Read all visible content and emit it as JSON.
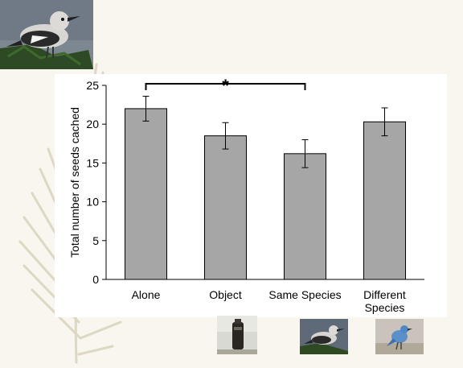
{
  "chart_data": {
    "type": "bar",
    "categories": [
      [
        "Alone"
      ],
      [
        "Object"
      ],
      [
        "Same Species"
      ],
      [
        "Different",
        "Species"
      ]
    ],
    "values": [
      22.0,
      18.5,
      16.2,
      20.3
    ],
    "errors": [
      1.6,
      1.7,
      1.8,
      1.8
    ],
    "title": "",
    "xlabel": "",
    "ylabel": "Total number of seeds cached",
    "ylim": [
      0,
      25
    ],
    "yticks": [
      0,
      5,
      10,
      15,
      20,
      25
    ],
    "grid": false,
    "bar_color": "#a6a6a6",
    "significance": [
      {
        "from": 0,
        "to": 2,
        "label": "*"
      }
    ]
  },
  "images": {
    "top_left": "clarks-nutcracker-photo",
    "object": "object-photo",
    "same_species": "clarks-nutcracker-photo",
    "different_species": "blue-bird-photo"
  },
  "colors": {
    "background": "#f8f6ee",
    "panel": "#ffffff",
    "bar": "#a6a6a6",
    "leaf": "#d9d6c2"
  }
}
